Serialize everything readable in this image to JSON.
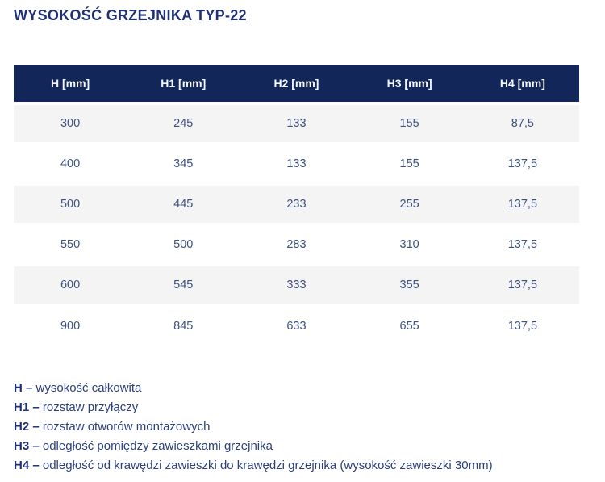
{
  "title": "WYSOKOŚĆ GRZEJNIKA TYP-22",
  "colors": {
    "header_bg": "#12265a",
    "header_text": "#f4f7fd",
    "row_alt_bg": "#f4f4f4",
    "cell_text": "#3d5180",
    "title_text": "#1e3176",
    "legend_text": "#2b3f7c"
  },
  "table": {
    "headers": [
      "H [mm]",
      "H1 [mm]",
      "H2 [mm]",
      "H3 [mm]",
      "H4 [mm]"
    ],
    "rows": [
      [
        "300",
        "245",
        "133",
        "155",
        "87,5"
      ],
      [
        "400",
        "345",
        "133",
        "155",
        "137,5"
      ],
      [
        "500",
        "445",
        "233",
        "255",
        "137,5"
      ],
      [
        "550",
        "500",
        "283",
        "310",
        "137,5"
      ],
      [
        "600",
        "545",
        "333",
        "355",
        "137,5"
      ],
      [
        "900",
        "845",
        "633",
        "655",
        "137,5"
      ]
    ]
  },
  "legend": [
    {
      "term": "H –",
      "desc": "wysokość całkowita"
    },
    {
      "term": "H1 –",
      "desc": "rozstaw przyłączy"
    },
    {
      "term": "H2 –",
      "desc": "rozstaw otworów montażowych"
    },
    {
      "term": "H3 –",
      "desc": "odległość pomiędzy zawieszkami grzejnika"
    },
    {
      "term": "H4 –",
      "desc": "odległość od krawędzi zawieszki do krawędzi grzejnika (wysokość zawieszki 30mm)"
    }
  ]
}
